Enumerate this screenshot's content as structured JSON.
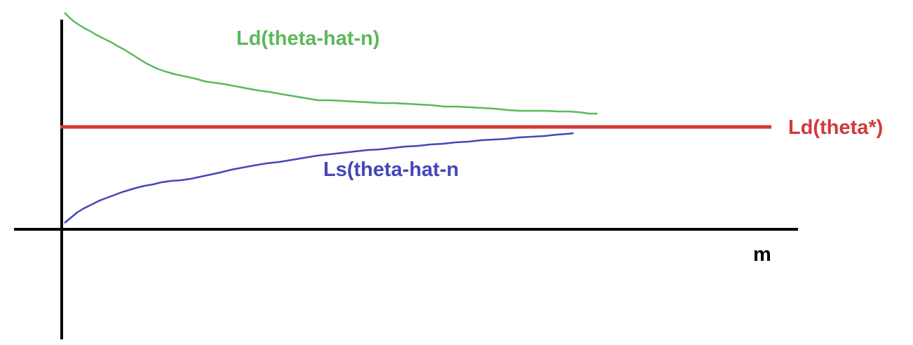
{
  "labels": {
    "green_curve": "Ld(theta-hat-n)",
    "red_line": "Ld(theta*)",
    "blue_curve": "Ls(theta-hat-n",
    "x_axis": "m"
  },
  "colors": {
    "green": "#5cb85c",
    "red": "#d03a3a",
    "blue": "#4646b8",
    "axes": "#000000"
  }
}
